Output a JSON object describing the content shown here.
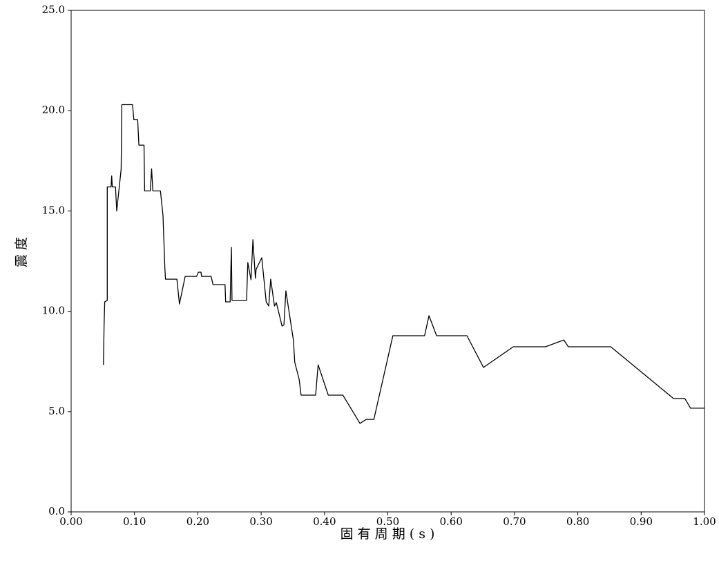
{
  "chart_data": {
    "type": "line",
    "xlabel": "固 有 周 期 ( s )",
    "ylabel": "震 度",
    "x": [
      0.051,
      0.052,
      0.053,
      0.057,
      0.057,
      0.063,
      0.064,
      0.065,
      0.07,
      0.072,
      0.079,
      0.08,
      0.097,
      0.099,
      0.105,
      0.107,
      0.115,
      0.116,
      0.125,
      0.127,
      0.129,
      0.141,
      0.145,
      0.148,
      0.149,
      0.167,
      0.171,
      0.18,
      0.198,
      0.201,
      0.205,
      0.206,
      0.221,
      0.224,
      0.243,
      0.244,
      0.251,
      0.253,
      0.254,
      0.277,
      0.279,
      0.284,
      0.287,
      0.291,
      0.292,
      0.301,
      0.308,
      0.312,
      0.315,
      0.321,
      0.324,
      0.333,
      0.336,
      0.339,
      0.351,
      0.353,
      0.36,
      0.363,
      0.386,
      0.39,
      0.406,
      0.429,
      0.456,
      0.466,
      0.478,
      0.508,
      0.558,
      0.565,
      0.577,
      0.625,
      0.651,
      0.698,
      0.749,
      0.778,
      0.785,
      0.852,
      0.951,
      0.969,
      0.978,
      1.0
    ],
    "series": [
      {
        "name": "震度",
        "color": "#000000",
        "values": [
          7.33,
          9.33,
          10.47,
          10.54,
          16.2,
          16.2,
          16.75,
          16.2,
          16.2,
          15.0,
          17.08,
          20.3,
          20.3,
          19.55,
          19.55,
          18.28,
          18.28,
          16.0,
          16.0,
          17.1,
          16.0,
          16.0,
          14.77,
          12.15,
          11.6,
          11.6,
          10.36,
          11.74,
          11.74,
          11.95,
          11.95,
          11.74,
          11.74,
          11.33,
          11.33,
          10.47,
          10.47,
          13.19,
          10.54,
          10.54,
          12.43,
          11.57,
          13.57,
          11.64,
          12.09,
          12.67,
          10.47,
          10.26,
          11.6,
          10.26,
          10.43,
          9.26,
          9.33,
          11.02,
          8.54,
          7.47,
          6.61,
          5.82,
          5.82,
          7.33,
          5.82,
          5.82,
          4.41,
          4.61,
          4.61,
          8.78,
          8.78,
          9.78,
          8.78,
          8.78,
          7.2,
          8.23,
          8.23,
          8.57,
          8.23,
          8.23,
          5.65,
          5.65,
          5.17,
          5.17
        ]
      }
    ],
    "xlim": [
      0,
      1
    ],
    "ylim": [
      0,
      25
    ],
    "xticks": [
      {
        "value": 0,
        "label": "0.00"
      },
      {
        "value": 0.1,
        "label": "0.10"
      },
      {
        "value": 0.2,
        "label": "0.20"
      },
      {
        "value": 0.3,
        "label": "0.30"
      },
      {
        "value": 0.4,
        "label": "0.40"
      },
      {
        "value": 0.5,
        "label": "0.50"
      },
      {
        "value": 0.6,
        "label": "0.60"
      },
      {
        "value": 0.7,
        "label": "0.70"
      },
      {
        "value": 0.8,
        "label": "0.80"
      },
      {
        "value": 0.9,
        "label": "0.90"
      },
      {
        "value": 1,
        "label": "1.00"
      }
    ],
    "yticks": [
      {
        "value": 0,
        "label": "0.0"
      },
      {
        "value": 5,
        "label": "5.0"
      },
      {
        "value": 10,
        "label": "10.0"
      },
      {
        "value": 15,
        "label": "15.0"
      },
      {
        "value": 20,
        "label": "20.0"
      },
      {
        "value": 25,
        "label": "25.0"
      }
    ],
    "grid": false
  }
}
